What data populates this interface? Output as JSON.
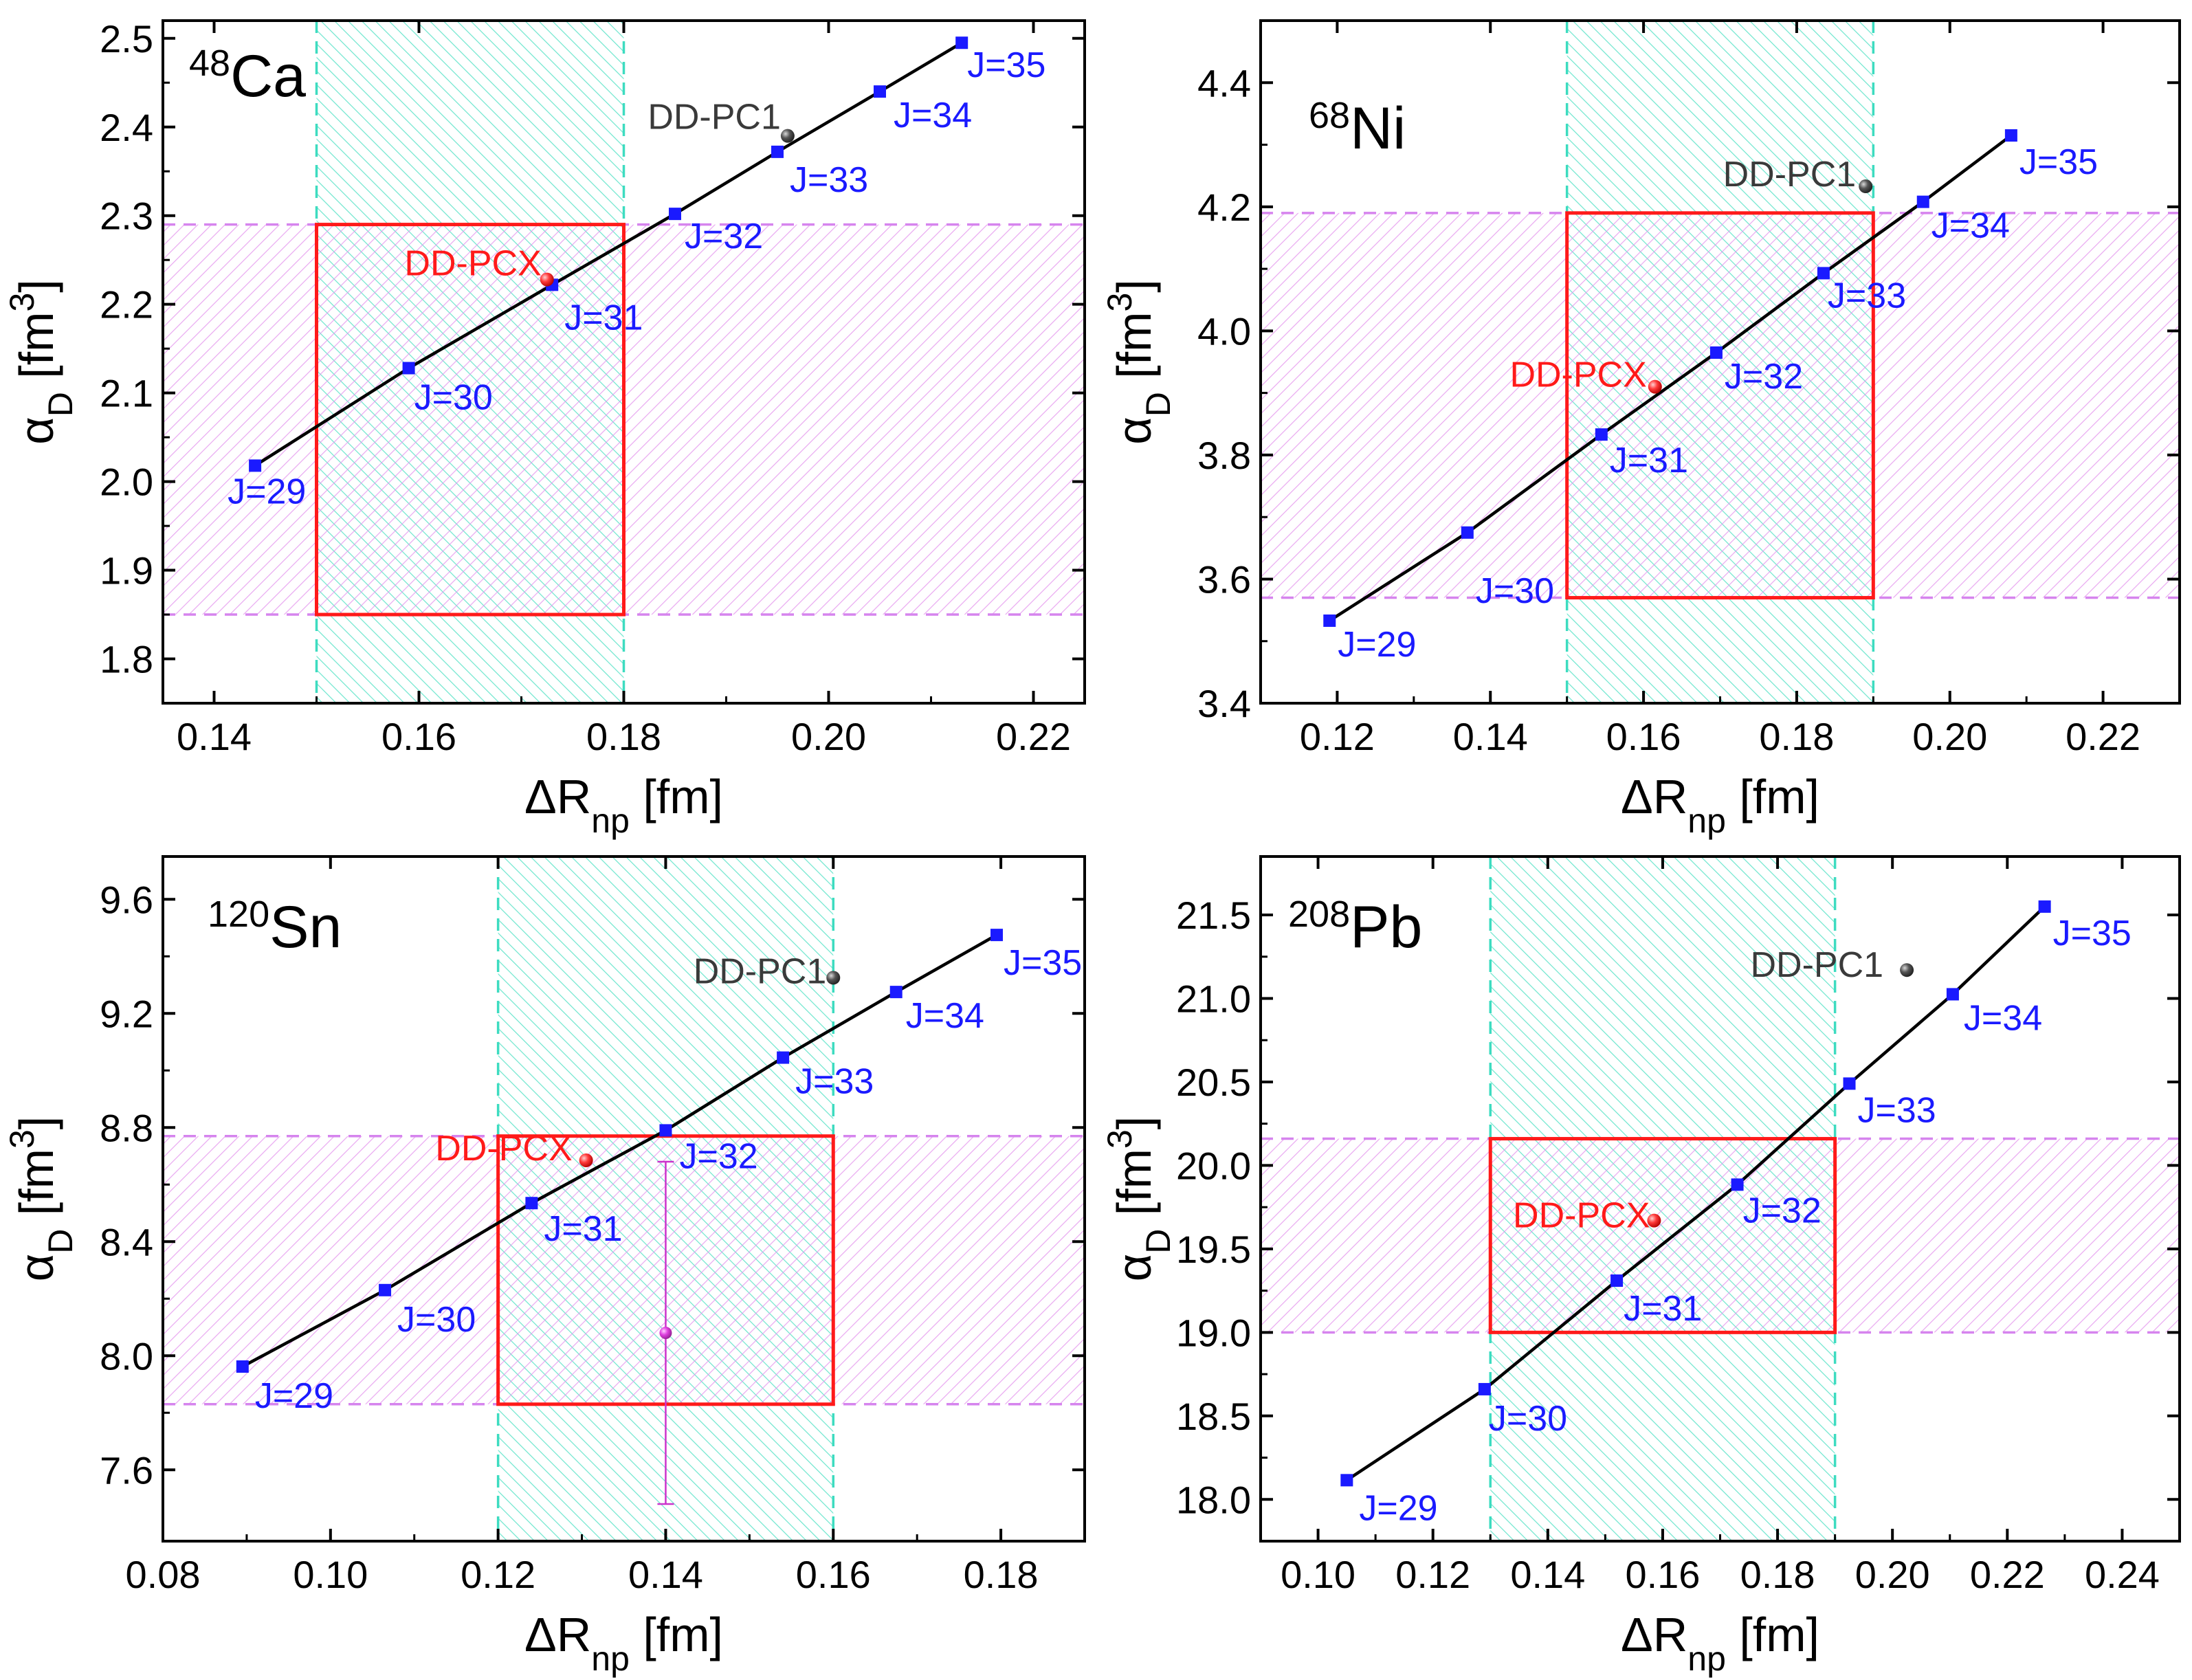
{
  "chart_data": [
    {
      "type": "scatter",
      "title": "48Ca",
      "nucleus": {
        "mass": "48",
        "symbol": "Ca"
      },
      "xlabel": {
        "main": "ΔR",
        "sub": "np",
        "unit": " [fm]"
      },
      "ylabel": {
        "main": "α",
        "sub": "D",
        "unit": " [fm",
        "sup": "3",
        "close": "]"
      },
      "xlim": [
        0.135,
        0.225
      ],
      "ylim": [
        1.75,
        2.52
      ],
      "xticks": [
        0.14,
        0.16,
        0.18,
        0.2,
        0.22
      ],
      "xtick_labels": [
        "0.14",
        "0.16",
        "0.18",
        "0.20",
        "0.22"
      ],
      "yticks": [
        1.8,
        1.9,
        2.0,
        2.1,
        2.2,
        2.3,
        2.4,
        2.5
      ],
      "ytick_labels": [
        "1.8",
        "1.9",
        "2.0",
        "2.1",
        "2.2",
        "2.3",
        "2.4",
        "2.5"
      ],
      "series": [
        {
          "name": "J",
          "x": [
            0.144,
            0.159,
            0.173,
            0.185,
            0.195,
            0.205,
            0.213
          ],
          "y": [
            2.018,
            2.128,
            2.222,
            2.302,
            2.372,
            2.44,
            2.495
          ],
          "labels": [
            "J=29",
            "J=30",
            "J=31",
            "J=32",
            "J=33",
            "J=34",
            "J=35"
          ]
        }
      ],
      "models": [
        {
          "name": "DD-PC1",
          "x": 0.196,
          "y": 2.39
        },
        {
          "name": "DD-PCX",
          "x": 0.1725,
          "y": 2.228
        }
      ],
      "x_band": [
        0.15,
        0.18
      ],
      "y_band": [
        1.85,
        2.29
      ],
      "error_bar": null
    },
    {
      "type": "scatter",
      "title": "68Ni",
      "nucleus": {
        "mass": "68",
        "symbol": "Ni"
      },
      "xlabel": {
        "main": "ΔR",
        "sub": "np",
        "unit": " [fm]"
      },
      "ylabel": {
        "main": "α",
        "sub": "D",
        "unit": " [fm",
        "sup": "3",
        "close": "]"
      },
      "xlim": [
        0.11,
        0.23
      ],
      "ylim": [
        3.4,
        4.5
      ],
      "xticks": [
        0.12,
        0.14,
        0.16,
        0.18,
        0.2,
        0.22
      ],
      "xtick_labels": [
        "0.12",
        "0.14",
        "0.16",
        "0.18",
        "0.20",
        "0.22"
      ],
      "yticks": [
        3.4,
        3.6,
        3.8,
        4.0,
        4.2,
        4.4
      ],
      "ytick_labels": [
        "3.4",
        "3.6",
        "3.8",
        "4.0",
        "4.2",
        "4.4"
      ],
      "series": [
        {
          "name": "J",
          "x": [
            0.119,
            0.137,
            0.1545,
            0.1695,
            0.1835,
            0.1965,
            0.208
          ],
          "y": [
            3.533,
            3.675,
            3.833,
            3.965,
            4.093,
            4.208,
            4.315
          ],
          "labels": [
            "J=29",
            "J=30",
            "J=31",
            "J=32",
            "J=33",
            "J=34",
            "J=35"
          ]
        }
      ],
      "models": [
        {
          "name": "DD-PC1",
          "x": 0.189,
          "y": 4.233
        },
        {
          "name": "DD-PCX",
          "x": 0.1615,
          "y": 3.91
        }
      ],
      "x_band": [
        0.15,
        0.19
      ],
      "y_band": [
        3.57,
        4.19
      ],
      "error_bar": null
    },
    {
      "type": "scatter",
      "title": "120Sn",
      "nucleus": {
        "mass": "120",
        "symbol": "Sn"
      },
      "xlabel": {
        "main": "ΔR",
        "sub": "np",
        "unit": " [fm]"
      },
      "ylabel": {
        "main": "α",
        "sub": "D",
        "unit": " [fm",
        "sup": "3",
        "close": "]"
      },
      "xlim": [
        0.08,
        0.19
      ],
      "ylim": [
        7.35,
        9.75
      ],
      "xticks": [
        0.08,
        0.1,
        0.12,
        0.14,
        0.16,
        0.18
      ],
      "xtick_labels": [
        "0.08",
        "0.10",
        "0.12",
        "0.14",
        "0.16",
        "0.18"
      ],
      "yticks": [
        7.6,
        8.0,
        8.4,
        8.8,
        9.2,
        9.6
      ],
      "ytick_labels": [
        "7.6",
        "8.0",
        "8.4",
        "8.8",
        "9.2",
        "9.6"
      ],
      "series": [
        {
          "name": "J",
          "x": [
            0.0895,
            0.1065,
            0.124,
            0.14,
            0.154,
            0.1675,
            0.1795
          ],
          "y": [
            7.962,
            8.23,
            8.535,
            8.79,
            9.045,
            9.275,
            9.475
          ],
          "labels": [
            "J=29",
            "J=30",
            "J=31",
            "J=32",
            "J=33",
            "J=34",
            "J=35"
          ]
        }
      ],
      "models": [
        {
          "name": "DD-PC1",
          "x": 0.16,
          "y": 9.325
        },
        {
          "name": "DD-PCX",
          "x": 0.1305,
          "y": 8.685
        }
      ],
      "x_band": [
        0.12,
        0.16
      ],
      "y_band": [
        7.83,
        8.77
      ],
      "error_bar": {
        "x": 0.14,
        "y": 8.08,
        "low": 7.48,
        "high": 8.68
      }
    },
    {
      "type": "scatter",
      "title": "208Pb",
      "nucleus": {
        "mass": "208",
        "symbol": "Pb"
      },
      "xlabel": {
        "main": "ΔR",
        "sub": "np",
        "unit": " [fm]"
      },
      "ylabel": {
        "main": "α",
        "sub": "D",
        "unit": " [fm",
        "sup": "3",
        "close": "]"
      },
      "xlim": [
        0.09,
        0.25
      ],
      "ylim": [
        17.75,
        21.85
      ],
      "xticks": [
        0.1,
        0.12,
        0.14,
        0.16,
        0.18,
        0.2,
        0.22,
        0.24
      ],
      "xtick_labels": [
        "0.10",
        "0.12",
        "0.14",
        "0.16",
        "0.18",
        "0.20",
        "0.22",
        "0.24"
      ],
      "yticks": [
        18.0,
        18.5,
        19.0,
        19.5,
        20.0,
        20.5,
        21.0,
        21.5
      ],
      "ytick_labels": [
        "18.0",
        "18.5",
        "19.0",
        "19.5",
        "20.0",
        "20.5",
        "21.0",
        "21.5"
      ],
      "series": [
        {
          "name": "J",
          "x": [
            0.105,
            0.129,
            0.152,
            0.173,
            0.1925,
            0.2105,
            0.2265
          ],
          "y": [
            18.115,
            18.66,
            19.31,
            19.885,
            20.49,
            21.025,
            21.55
          ],
          "labels": [
            "J=29",
            "J=30",
            "J=31",
            "J=32",
            "J=33",
            "J=34",
            "J=35"
          ]
        }
      ],
      "models": [
        {
          "name": "DD-PC1",
          "x": 0.2025,
          "y": 21.17
        },
        {
          "name": "DD-PCX",
          "x": 0.1585,
          "y": 19.67
        }
      ],
      "x_band": [
        0.13,
        0.19
      ],
      "y_band": [
        19.0,
        20.16
      ],
      "error_bar": null
    }
  ],
  "colors": {
    "series_marker": "#1a1aff",
    "fit_line": "#000000",
    "label_j": "#1a1aff",
    "dd_pc1": "#3a3a3a",
    "dd_pcx": "#ff1a1a",
    "box": "#ff1a1a",
    "x_band_fill": "#48e0c2",
    "x_band_line": "#3ddcc0",
    "y_band_fill": "#e392ee",
    "y_band_line": "#d684ee",
    "error_bar": "#cc33cc"
  }
}
